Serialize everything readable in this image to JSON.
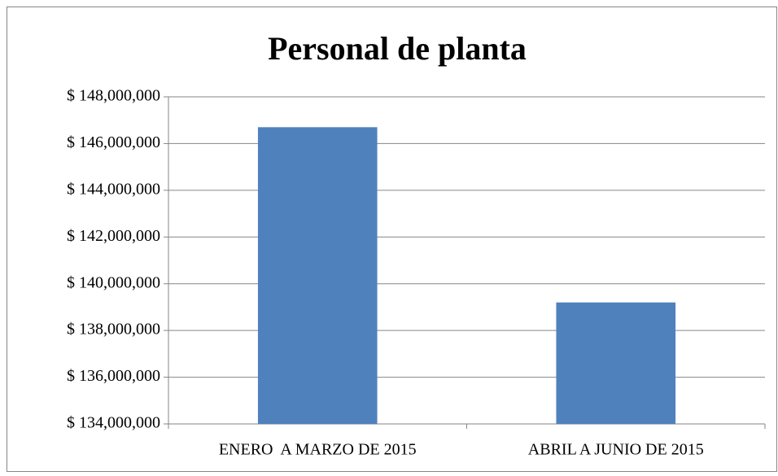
{
  "chart_data": {
    "type": "bar",
    "title": "Personal de planta",
    "categories": [
      "ENERO  A MARZO DE 2015",
      "ABRIL A JUNIO DE 2015"
    ],
    "values": [
      146700000,
      139200000
    ],
    "color": "#4f81bd",
    "ylim": [
      134000000,
      148000000
    ],
    "yticks": [
      {
        "value": 134000000,
        "label": "$ 134,000,000"
      },
      {
        "value": 136000000,
        "label": "$ 136,000,000"
      },
      {
        "value": 138000000,
        "label": "$ 138,000,000"
      },
      {
        "value": 140000000,
        "label": "$ 140,000,000"
      },
      {
        "value": 142000000,
        "label": "$ 142,000,000"
      },
      {
        "value": 144000000,
        "label": "$ 144,000,000"
      },
      {
        "value": 146000000,
        "label": "$ 146,000,000"
      },
      {
        "value": 148000000,
        "label": "$ 148,000,000"
      }
    ],
    "grid": true
  }
}
